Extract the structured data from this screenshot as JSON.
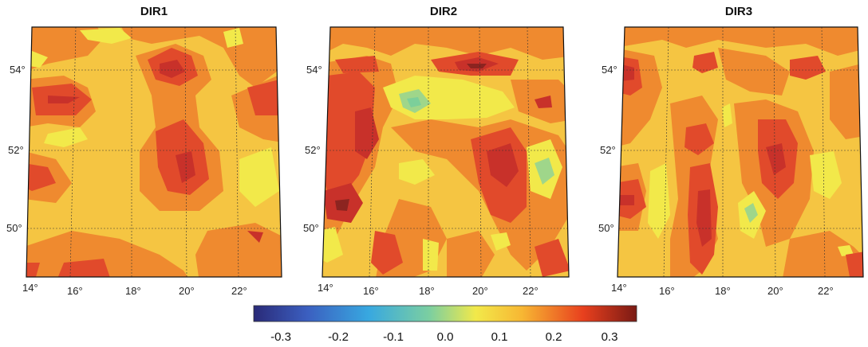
{
  "panels": [
    {
      "title": "DIR1"
    },
    {
      "title": "DIR2"
    },
    {
      "title": "DIR3"
    }
  ],
  "latitude_labels": [
    "54°",
    "52°",
    "50°"
  ],
  "longitude_labels": [
    "14°",
    "16°",
    "18°",
    "20°",
    "22°"
  ],
  "colorbar": {
    "ticks": [
      "-0.3",
      "-0.2",
      "-0.1",
      "0.0",
      "0.1",
      "0.2",
      "0.3"
    ],
    "range": [
      -0.3,
      0.3
    ],
    "colors": [
      "#2a2a78",
      "#3b5fc0",
      "#38a8e0",
      "#7ccfa0",
      "#f2e94a",
      "#f7b733",
      "#e8401e",
      "#7a1a14"
    ]
  },
  "field_colors": {
    "0.05": "#f2e94a",
    "0.10": "#f5c542",
    "0.15": "#ef8a2f",
    "0.20": "#e14a2b",
    "0.25": "#c8312a",
    "0.30": "#8c2420",
    "0.02": "#7ccf9a"
  }
}
